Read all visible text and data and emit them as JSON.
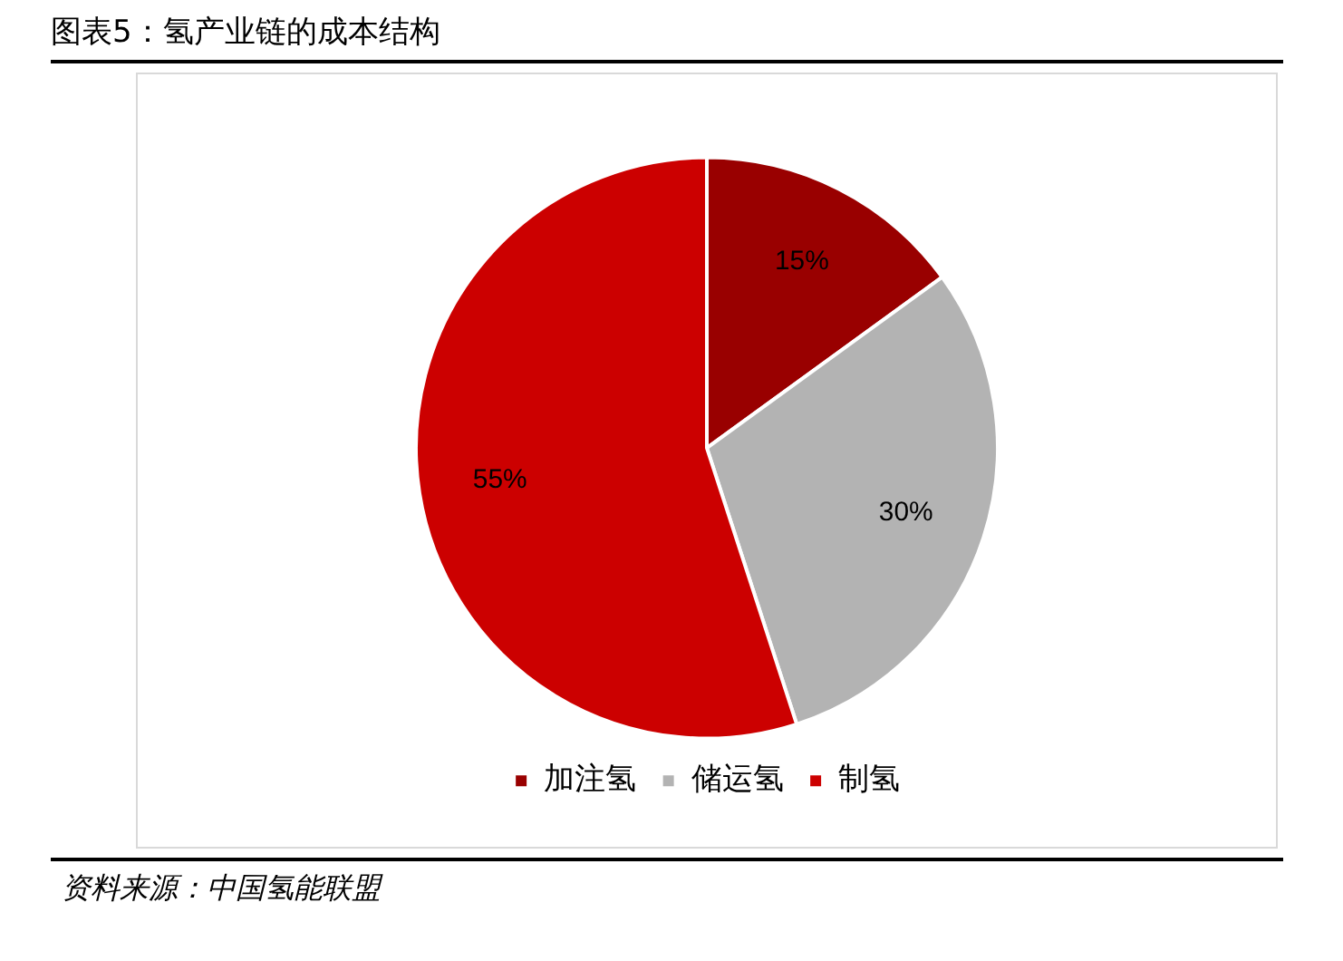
{
  "chart_data": {
    "type": "pie",
    "title": "图表5：氢产业链的成本结构",
    "categories": [
      "加注氢",
      "储运氢",
      "制氢"
    ],
    "values": [
      15,
      30,
      55
    ],
    "colors": [
      "#990000",
      "#b3b3b3",
      "#cc0000"
    ],
    "value_labels": [
      "15%",
      "30%",
      "55%"
    ],
    "legend": "bottom",
    "annotations": [
      "资料来源：中国氢能联盟"
    ]
  }
}
